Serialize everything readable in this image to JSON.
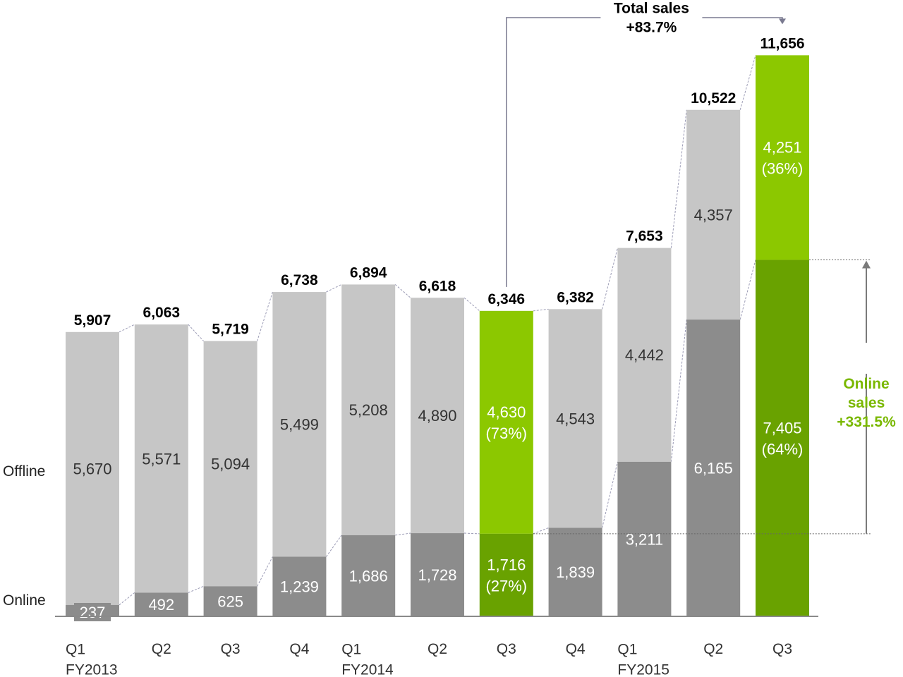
{
  "colors": {
    "offline": "#c6c6c6",
    "online": "#8c8c8c",
    "offline_highlight": "#8cc800",
    "online_highlight": "#69a200",
    "accent_text": "#7ab800",
    "connector": "#9b9bb5"
  },
  "legend": {
    "offline": "Offline",
    "online": "Online"
  },
  "chart_data": {
    "type": "bar",
    "stacked": true,
    "categories": [
      "Q1 FY2013",
      "Q2",
      "Q3",
      "Q4",
      "Q1 FY2014",
      "Q2",
      "Q3",
      "Q4",
      "Q1 FY2015",
      "Q2",
      "Q3"
    ],
    "tick_labels": [
      [
        "Q1",
        "FY2013"
      ],
      [
        "Q2"
      ],
      [
        "Q3"
      ],
      [
        "Q4"
      ],
      [
        "Q1",
        "FY2014"
      ],
      [
        "Q2"
      ],
      [
        "Q3"
      ],
      [
        "Q4"
      ],
      [
        "Q1",
        "FY2015"
      ],
      [
        "Q2"
      ],
      [
        "Q3"
      ]
    ],
    "series": [
      {
        "name": "Online",
        "values": [
          237,
          492,
          625,
          1239,
          1686,
          1728,
          1716,
          1839,
          3211,
          6165,
          7405
        ]
      },
      {
        "name": "Offline",
        "values": [
          5670,
          5571,
          5094,
          5499,
          5208,
          4890,
          4630,
          4543,
          4442,
          4357,
          4251
        ]
      }
    ],
    "totals": [
      5907,
      6063,
      5719,
      6738,
      6894,
      6618,
      6346,
      6382,
      7653,
      10522,
      11656
    ],
    "total_labels": [
      "5,907",
      "6,063",
      "5,719",
      "6,738",
      "6,894",
      "6,618",
      "6,346",
      "6,382",
      "7,653",
      "10,522",
      "11,656"
    ],
    "online_labels": [
      "237",
      "492",
      "625",
      "1,239",
      "1,686",
      "1,728",
      "1,716\n(27%)",
      "1,839",
      "3,211",
      "6,165",
      "7,405\n(64%)"
    ],
    "offline_labels": [
      "5,670",
      "5,571",
      "5,094",
      "5,499",
      "5,208",
      "4,890",
      "4,630\n(73%)",
      "4,543",
      "4,442",
      "4,357",
      "4,251\n(36%)"
    ],
    "highlighted_categories": [
      6,
      10
    ],
    "ylim": [
      0,
      12500
    ],
    "grid": false,
    "annotations": {
      "total_sales": {
        "lines": [
          "Total sales",
          "+83.7%"
        ],
        "from_index": 6,
        "to_index": 10
      },
      "online_sales": {
        "lines": [
          "Online",
          "sales",
          "+331.5%"
        ],
        "from_index": 6,
        "to_index": 10
      }
    }
  }
}
